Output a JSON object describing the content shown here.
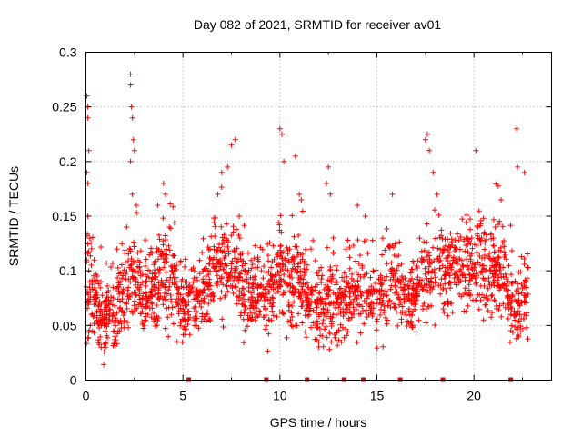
{
  "chart_data": {
    "type": "scatter",
    "title": "Day 082 of 2021, SRMTID for receiver av01",
    "xlabel": "GPS time / hours",
    "ylabel": "SRMTID / TECUs",
    "xlim": [
      0,
      24
    ],
    "ylim": [
      0,
      0.3
    ],
    "xticks": [
      0,
      5,
      10,
      15,
      20
    ],
    "xtick_labels": [
      "0",
      "5",
      "10",
      "15",
      "20"
    ],
    "yticks": [
      0,
      0.05,
      0.1,
      0.15,
      0.2,
      0.25,
      0.3
    ],
    "ytick_labels": [
      "0",
      "0.05",
      "0.1",
      "0.15",
      "0.2",
      "0.25",
      "0.3"
    ],
    "grid": true,
    "marker": "plus",
    "color": "#ff0000",
    "data_hours": [
      0,
      22.8
    ],
    "baseline_markers_x": [
      5.3,
      9.3,
      11.4,
      13.3,
      14.3,
      16.2,
      18.4,
      21.9
    ],
    "series": [
      {
        "name": "SRMTID",
        "points": [
          [
            0.05,
            0.26
          ],
          [
            0.1,
            0.25
          ],
          [
            0.1,
            0.24
          ],
          [
            0.15,
            0.21
          ],
          [
            0.05,
            0.19
          ],
          [
            0.1,
            0.18
          ],
          [
            0.1,
            0.15
          ],
          [
            0.2,
            0.13
          ],
          [
            0.05,
            0.11
          ],
          [
            0.15,
            0.1
          ],
          [
            0.2,
            0.09
          ],
          [
            0.3,
            0.06
          ],
          [
            0.5,
            0.08
          ],
          [
            0.8,
            0.05
          ],
          [
            1.0,
            0.03
          ],
          [
            1.2,
            0.07
          ],
          [
            1.5,
            0.04
          ],
          [
            1.6,
            0.12
          ],
          [
            1.9,
            0.08
          ],
          [
            2.1,
            0.14
          ],
          [
            2.3,
            0.28
          ],
          [
            2.3,
            0.27
          ],
          [
            2.35,
            0.25
          ],
          [
            2.4,
            0.24
          ],
          [
            2.45,
            0.22
          ],
          [
            2.5,
            0.21
          ],
          [
            2.3,
            0.2
          ],
          [
            2.4,
            0.17
          ],
          [
            2.6,
            0.16
          ],
          [
            2.8,
            0.1
          ],
          [
            3.2,
            0.06
          ],
          [
            3.7,
            0.16
          ],
          [
            4.0,
            0.18
          ],
          [
            4.1,
            0.17
          ],
          [
            4.3,
            0.14
          ],
          [
            4.4,
            0.06
          ],
          [
            5.2,
            0.09
          ],
          [
            5.6,
            0.05
          ],
          [
            6.0,
            0.08
          ],
          [
            6.4,
            0.12
          ],
          [
            6.8,
            0.17
          ],
          [
            7.0,
            0.19
          ],
          [
            7.3,
            0.195
          ],
          [
            7.5,
            0.215
          ],
          [
            7.7,
            0.22
          ],
          [
            7.9,
            0.15
          ],
          [
            8.2,
            0.1
          ],
          [
            8.8,
            0.07
          ],
          [
            9.3,
            0.05
          ],
          [
            9.7,
            0.09
          ],
          [
            10.0,
            0.23
          ],
          [
            10.1,
            0.225
          ],
          [
            10.2,
            0.2
          ],
          [
            10.5,
            0.12
          ],
          [
            10.8,
            0.205
          ],
          [
            11.0,
            0.17
          ],
          [
            11.1,
            0.165
          ],
          [
            11.6,
            0.12
          ],
          [
            12.0,
            0.06
          ],
          [
            12.4,
            0.18
          ],
          [
            12.5,
            0.195
          ],
          [
            12.6,
            0.17
          ],
          [
            13.0,
            0.08
          ],
          [
            13.4,
            0.12
          ],
          [
            14.0,
            0.16
          ],
          [
            14.4,
            0.15
          ],
          [
            14.8,
            0.1
          ],
          [
            15.3,
            0.13
          ],
          [
            15.8,
            0.17
          ],
          [
            16.2,
            0.09
          ],
          [
            16.7,
            0.06
          ],
          [
            17.2,
            0.13
          ],
          [
            17.5,
            0.22
          ],
          [
            17.6,
            0.225
          ],
          [
            17.7,
            0.21
          ],
          [
            17.9,
            0.19
          ],
          [
            18.1,
            0.17
          ],
          [
            18.4,
            0.12
          ],
          [
            19.0,
            0.09
          ],
          [
            19.6,
            0.13
          ],
          [
            20.1,
            0.21
          ],
          [
            20.2,
            0.14
          ],
          [
            20.6,
            0.1
          ],
          [
            21.0,
            0.13
          ],
          [
            21.4,
            0.165
          ],
          [
            21.9,
            0.06
          ],
          [
            22.2,
            0.23
          ],
          [
            22.25,
            0.195
          ],
          [
            22.6,
            0.19
          ],
          [
            22.7,
            0.09
          ]
        ],
        "envelope": [
          [
            0,
            0.09,
            0.05
          ],
          [
            0.5,
            0.07,
            0.035
          ],
          [
            1,
            0.055,
            0.03
          ],
          [
            1.5,
            0.06,
            0.03
          ],
          [
            2,
            0.085,
            0.035
          ],
          [
            2.5,
            0.09,
            0.035
          ],
          [
            3,
            0.075,
            0.03
          ],
          [
            3.5,
            0.085,
            0.035
          ],
          [
            4,
            0.1,
            0.04
          ],
          [
            4.5,
            0.09,
            0.035
          ],
          [
            5,
            0.065,
            0.03
          ],
          [
            5.5,
            0.075,
            0.03
          ],
          [
            6,
            0.08,
            0.03
          ],
          [
            6.5,
            0.1,
            0.035
          ],
          [
            7,
            0.11,
            0.04
          ],
          [
            7.5,
            0.1,
            0.035
          ],
          [
            8,
            0.09,
            0.035
          ],
          [
            8.5,
            0.08,
            0.03
          ],
          [
            9,
            0.075,
            0.03
          ],
          [
            9.5,
            0.08,
            0.03
          ],
          [
            10,
            0.1,
            0.04
          ],
          [
            10.5,
            0.085,
            0.035
          ],
          [
            11,
            0.09,
            0.035
          ],
          [
            11.5,
            0.075,
            0.03
          ],
          [
            12,
            0.065,
            0.03
          ],
          [
            12.5,
            0.07,
            0.03
          ],
          [
            13,
            0.065,
            0.03
          ],
          [
            13.5,
            0.075,
            0.03
          ],
          [
            14,
            0.085,
            0.03
          ],
          [
            14.5,
            0.08,
            0.03
          ],
          [
            15,
            0.075,
            0.03
          ],
          [
            15.5,
            0.085,
            0.035
          ],
          [
            16,
            0.085,
            0.035
          ],
          [
            16.5,
            0.075,
            0.03
          ],
          [
            17,
            0.08,
            0.03
          ],
          [
            17.5,
            0.09,
            0.035
          ],
          [
            18,
            0.1,
            0.035
          ],
          [
            18.5,
            0.095,
            0.035
          ],
          [
            19,
            0.1,
            0.035
          ],
          [
            19.5,
            0.1,
            0.035
          ],
          [
            20,
            0.11,
            0.035
          ],
          [
            20.5,
            0.1,
            0.035
          ],
          [
            21,
            0.095,
            0.035
          ],
          [
            21.5,
            0.1,
            0.035
          ],
          [
            22,
            0.065,
            0.03
          ],
          [
            22.5,
            0.07,
            0.03
          ],
          [
            22.8,
            0.08,
            0.03
          ]
        ]
      }
    ]
  }
}
